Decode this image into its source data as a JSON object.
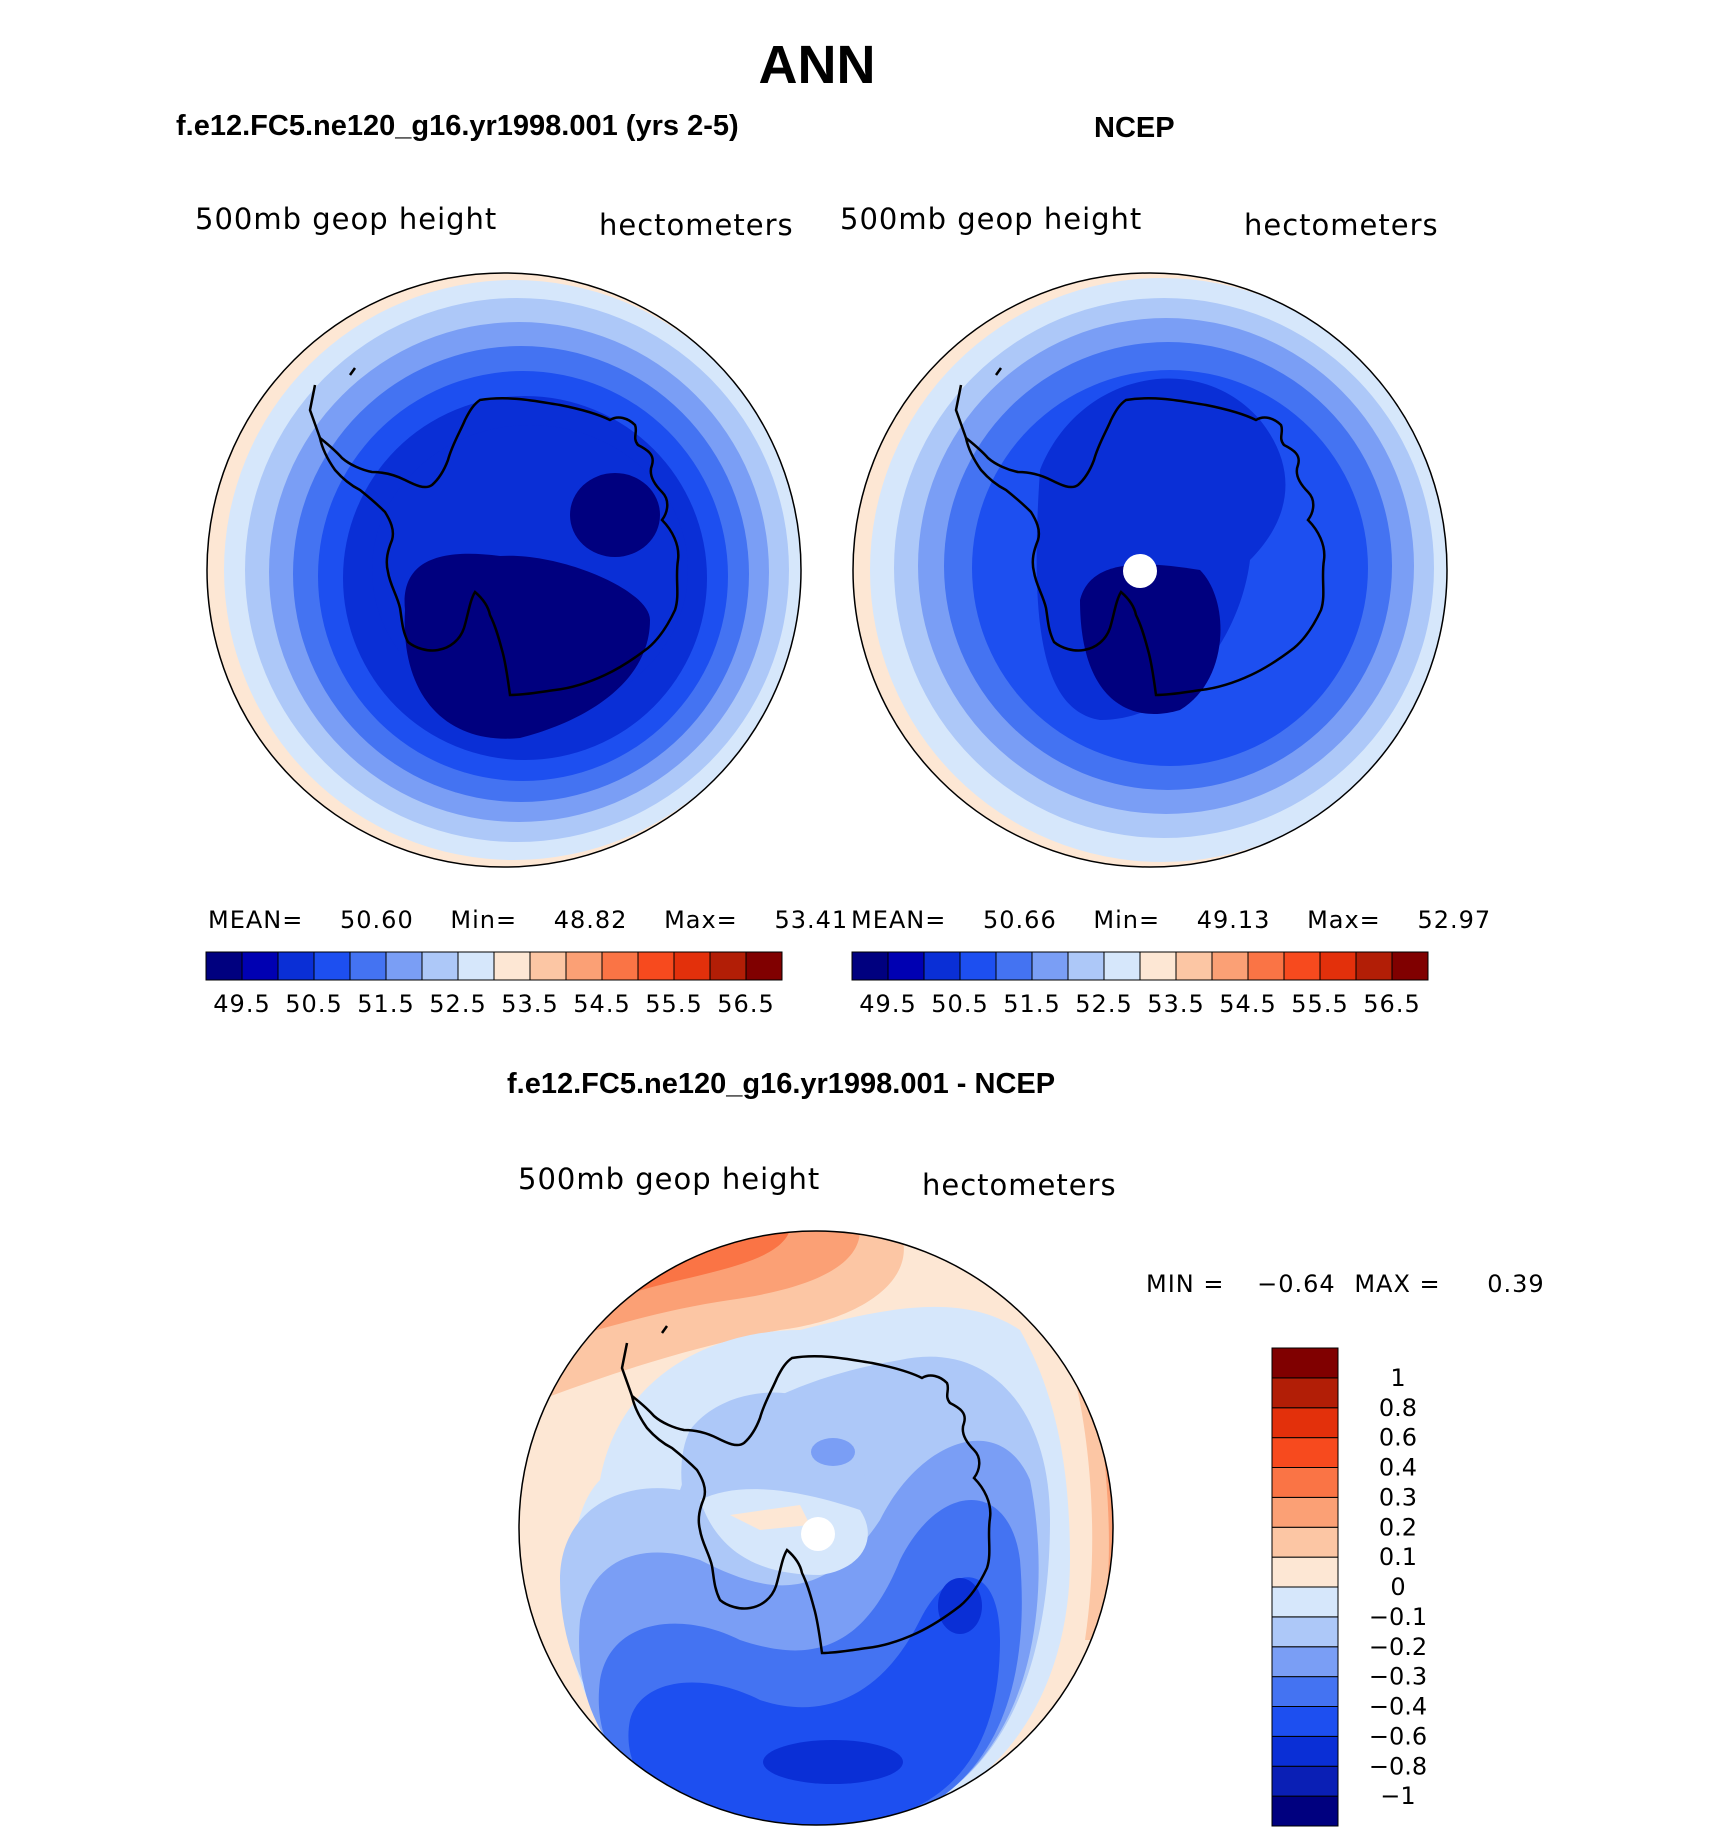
{
  "figure": {
    "title": "ANN",
    "panels": [
      {
        "title": "f.e12.FC5.ne120_g16.yr1998.001 (yrs 2-5)",
        "left_label": "500mb  geop  height",
        "right_label": "hectometers",
        "stats": {
          "mean_label": "MEAN=",
          "mean": "50.60",
          "min_label": "Min=",
          "min": "48.82",
          "max_label": "Max=",
          "max": "53.41"
        }
      },
      {
        "title": "NCEP",
        "left_label": "500mb  geop  height",
        "right_label": "hectometers",
        "stats": {
          "mean_label": "MEAN=",
          "mean": "50.66",
          "min_label": "Min=",
          "min": "49.13",
          "max_label": "Max=",
          "max": "52.97"
        }
      },
      {
        "title": "f.e12.FC5.ne120_g16.yr1998.001 - NCEP",
        "left_label": "500mb  geop  height",
        "right_label": "hectometers",
        "stats": {
          "min_label": "MIN =",
          "min": "−0.64",
          "max_label": "MAX =",
          "max": "0.39"
        }
      }
    ],
    "colorbar_abs": {
      "colors": [
        "#00007f",
        "#0000b2",
        "#0a2fd6",
        "#1d4ff0",
        "#4473f2",
        "#7a9ef5",
        "#adc8f8",
        "#d6e7fb",
        "#fde7d4",
        "#fcc6a4",
        "#fba075",
        "#fa7445",
        "#f74a1e",
        "#e3300b",
        "#b21e06",
        "#800000"
      ],
      "labels": [
        "49.5",
        "50.5",
        "51.5",
        "52.5",
        "53.5",
        "54.5",
        "55.5",
        "56.5"
      ]
    },
    "colorbar_diff": {
      "colors": [
        "#00007f",
        "#0a1fb5",
        "#0a2fd6",
        "#1d4ff0",
        "#4473f2",
        "#7a9ef5",
        "#adc8f8",
        "#d6e7fb",
        "#fde7d4",
        "#fcc6a4",
        "#fba075",
        "#fa7445",
        "#f74a1e",
        "#e3300b",
        "#b21e06",
        "#800000"
      ],
      "labels": [
        "−1",
        "−0.8",
        "−0.6",
        "−0.4",
        "−0.3",
        "−0.2",
        "−0.1",
        "0",
        "0.1",
        "0.2",
        "0.3",
        "0.4",
        "0.6",
        "0.8",
        "1"
      ]
    }
  }
}
